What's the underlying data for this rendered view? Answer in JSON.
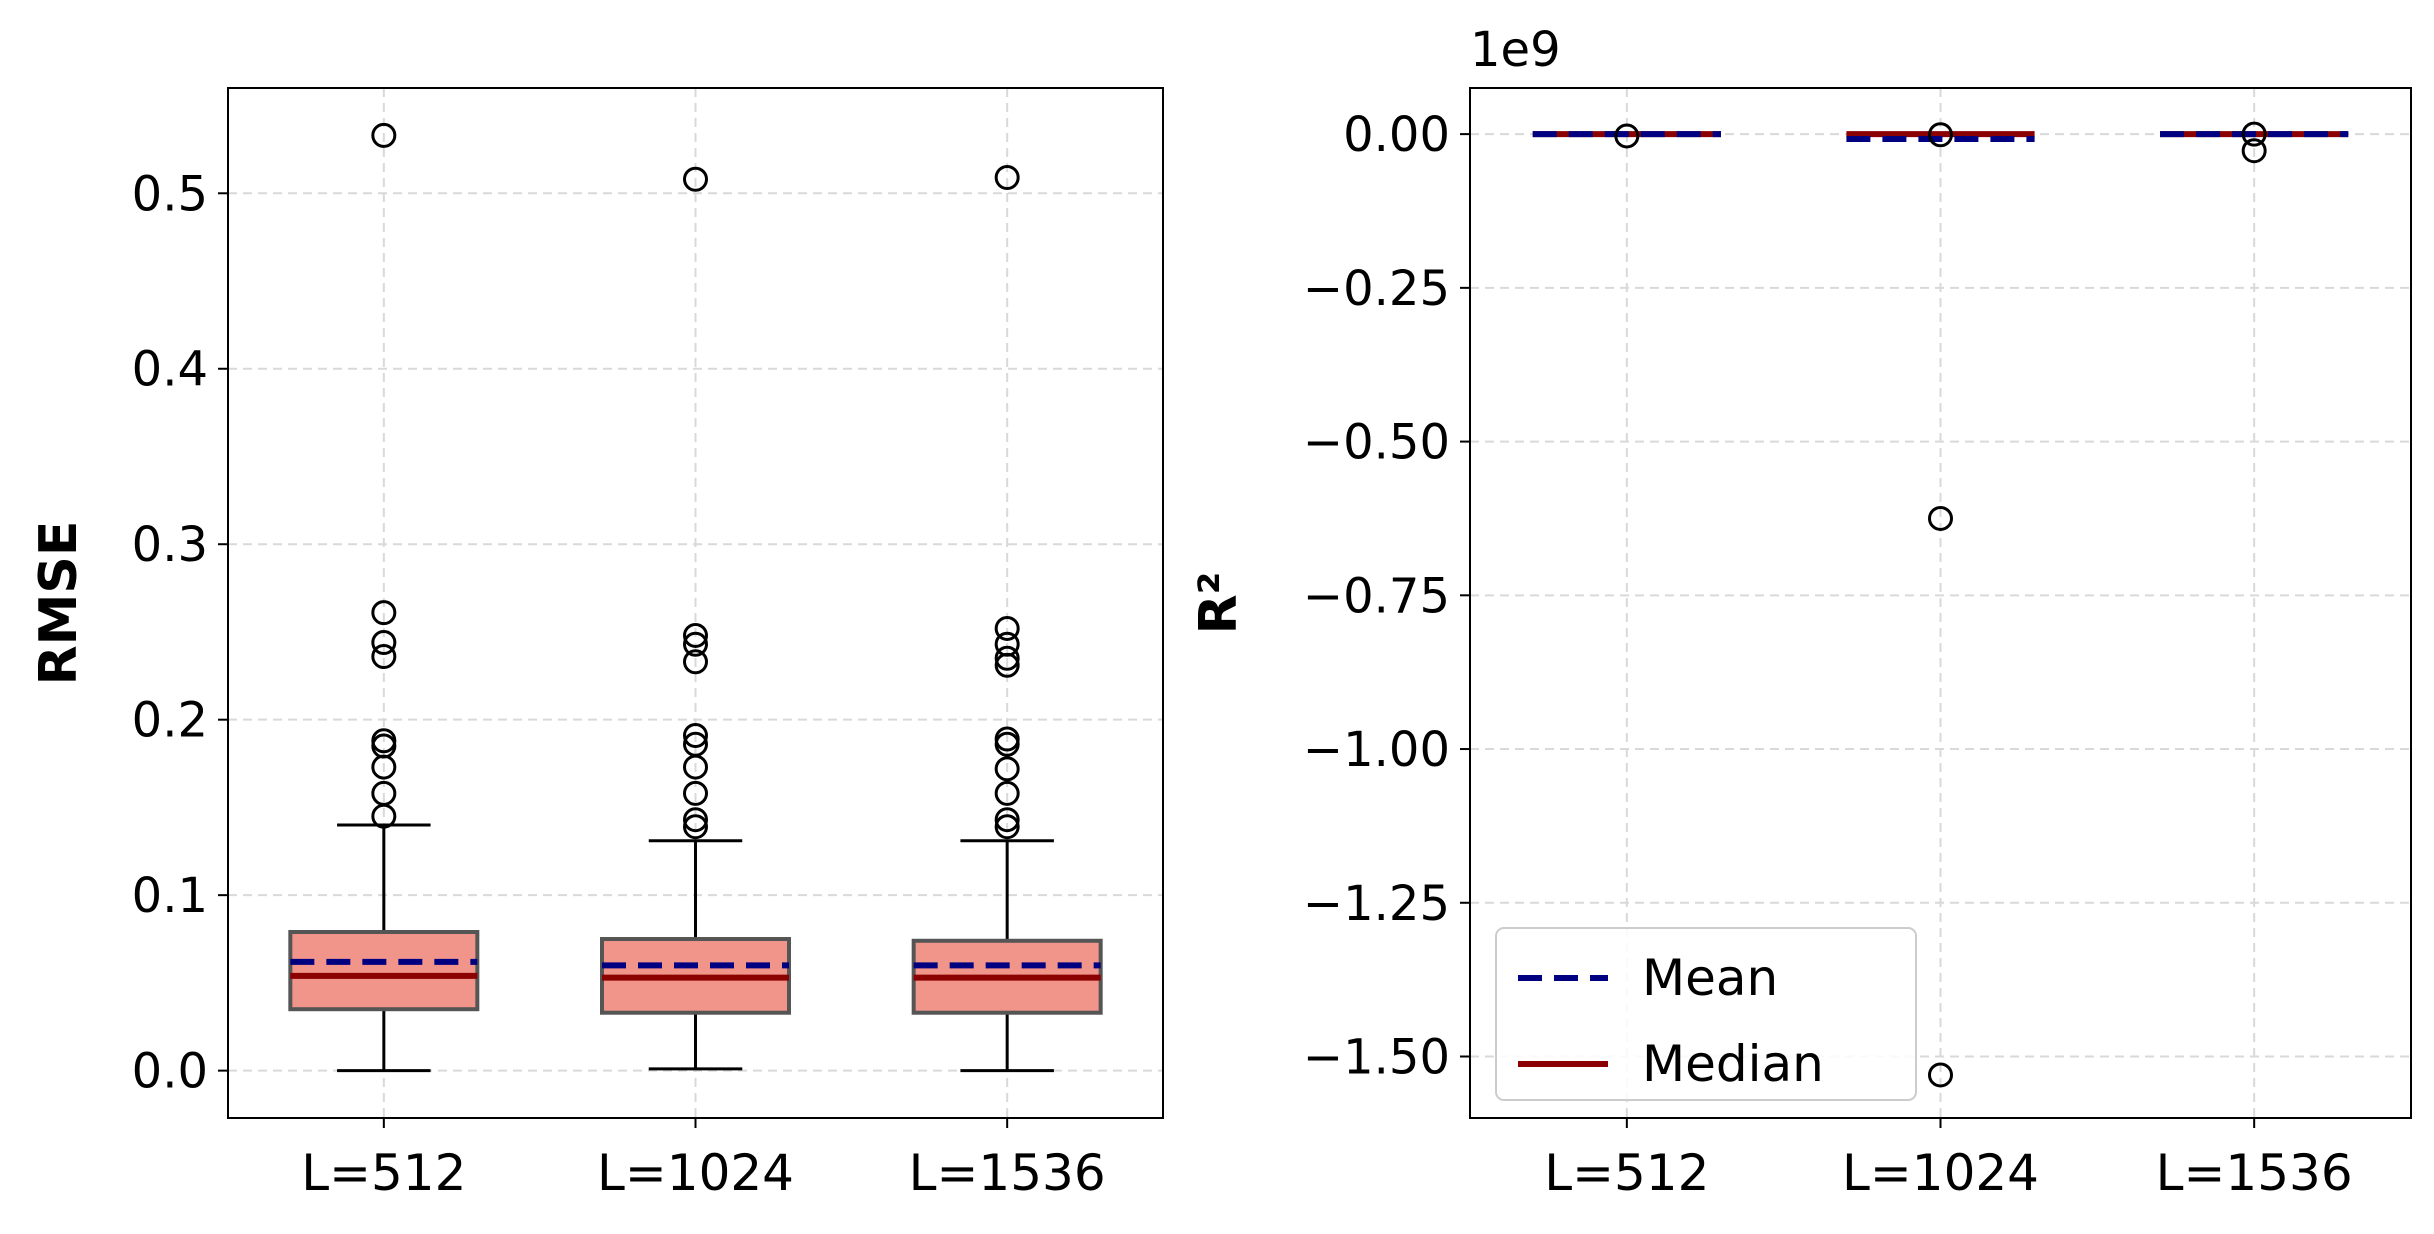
{
  "chart_data": [
    {
      "type": "box",
      "ylabel": "RMSE",
      "categories": [
        "L=512",
        "L=1024",
        "L=1536"
      ],
      "ylim": [
        -0.027,
        0.56
      ],
      "yticks": [
        0.0,
        0.1,
        0.2,
        0.3,
        0.4,
        0.5
      ],
      "ytick_labels": [
        "0.0",
        "0.1",
        "0.2",
        "0.3",
        "0.4",
        "0.5"
      ],
      "grid": true,
      "box_color": "#f1948a",
      "mean_color": "#000080",
      "median_color": "#8b0000",
      "boxes": [
        {
          "category": "L=512",
          "whisker_low": 0.0,
          "q1": 0.035,
          "median": 0.054,
          "mean": 0.062,
          "q3": 0.079,
          "whisker_high": 0.14,
          "outliers": [
            0.145,
            0.158,
            0.173,
            0.185,
            0.188,
            0.236,
            0.244,
            0.261,
            0.533
          ]
        },
        {
          "category": "L=1024",
          "whisker_low": 0.001,
          "q1": 0.033,
          "median": 0.053,
          "mean": 0.06,
          "q3": 0.075,
          "whisker_high": 0.131,
          "outliers": [
            0.139,
            0.143,
            0.158,
            0.173,
            0.186,
            0.191,
            0.233,
            0.243,
            0.248,
            0.508
          ]
        },
        {
          "category": "L=1536",
          "whisker_low": 0.0,
          "q1": 0.033,
          "median": 0.053,
          "mean": 0.06,
          "q3": 0.074,
          "whisker_high": 0.131,
          "outliers": [
            0.139,
            0.143,
            0.158,
            0.172,
            0.186,
            0.189,
            0.231,
            0.235,
            0.243,
            0.252,
            0.509
          ]
        }
      ]
    },
    {
      "type": "box",
      "ylabel": "R²",
      "offset_label": "1e9",
      "categories": [
        "L=512",
        "L=1024",
        "L=1536"
      ],
      "ylim": [
        -1.6,
        0.075
      ],
      "yticks": [
        0.0,
        -0.25,
        -0.5,
        -0.75,
        -1.0,
        -1.25,
        -1.5
      ],
      "ytick_labels": [
        "0.00",
        "−0.25",
        "−0.50",
        "−0.75",
        "−1.00",
        "−1.25",
        "−1.50"
      ],
      "grid": true,
      "mean_color": "#000080",
      "median_color": "#8b0000",
      "legend_position": "lower-left",
      "legend": [
        {
          "label": "Mean",
          "style": "dashed",
          "color": "#000080"
        },
        {
          "label": "Median",
          "style": "solid",
          "color": "#8b0000"
        }
      ],
      "boxes": [
        {
          "category": "L=512",
          "median": 0.0,
          "mean": 0.0,
          "outliers": [
            -0.003
          ]
        },
        {
          "category": "L=1024",
          "median": 0.0,
          "mean": -0.008,
          "outliers": [
            -0.001,
            -0.625,
            -1.53
          ]
        },
        {
          "category": "L=1536",
          "median": 0.0,
          "mean": 0.0,
          "outliers": [
            0.0,
            -0.027
          ]
        }
      ]
    }
  ]
}
